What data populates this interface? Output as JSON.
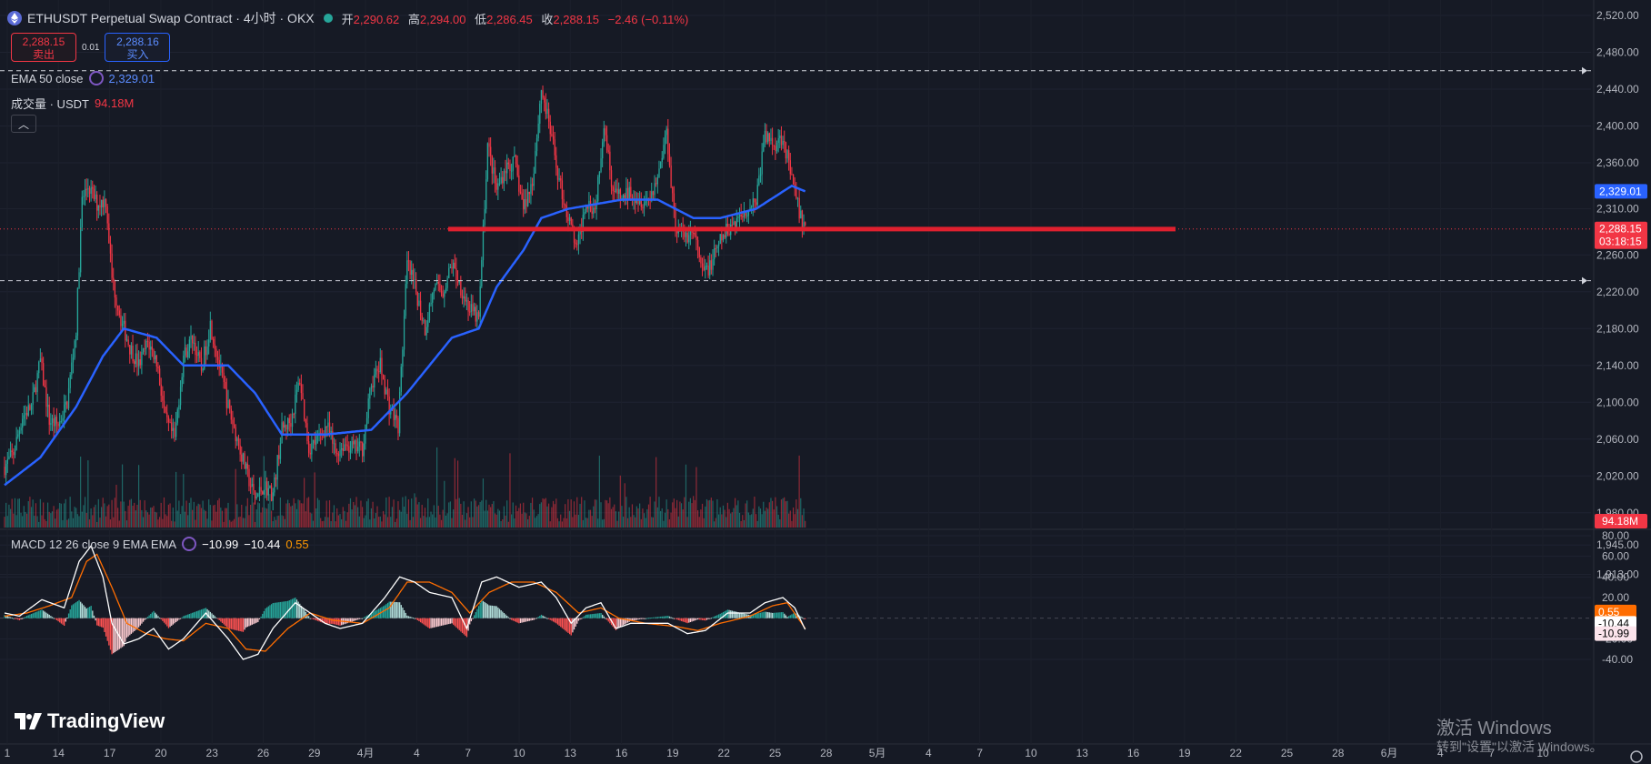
{
  "header": {
    "title": "ETHUSDT Perpetual Swap Contract · 4小时 · OKX",
    "ohlc": [
      {
        "k": "开",
        "v": "2,290.62"
      },
      {
        "k": "高",
        "v": "2,294.00"
      },
      {
        "k": "低",
        "v": "2,286.45"
      },
      {
        "k": "收",
        "v": "2,288.15"
      }
    ],
    "change": "−2.46 (−0.11%)"
  },
  "trade": {
    "sell_price": "2,288.15",
    "sell_label": "卖出",
    "spread": "0.01",
    "buy_price": "2,288.16",
    "buy_label": "买入"
  },
  "indicators": {
    "ema": {
      "name": "EMA 50 close",
      "value": "2,329.01"
    },
    "volume": {
      "name": "成交量 · USDT",
      "value": "94.18M"
    },
    "macd": {
      "name": "MACD 12 26 close 9 EMA EMA",
      "v1": "−10.99",
      "v2": "−10.44",
      "v3": "0.55"
    }
  },
  "branding": {
    "logo_text": "TradingView"
  },
  "os_watermark": {
    "line1": "激活 Windows",
    "line2": "转到\"设置\"以激活 Windows。"
  },
  "colors": {
    "up": "#26a69a",
    "down": "#f23645",
    "ema": "#2962ff",
    "macd": "#ffffff",
    "signal": "#ff6d00",
    "bg": "#161a25",
    "hline": "#e0202f"
  },
  "chart_data": {
    "type": "candlestick",
    "y_ticks": [
      "2,520.00",
      "2,480.00",
      "2,440.00",
      "2,400.00",
      "2,360.00",
      "2,310.00",
      "2,260.00",
      "2,220.00",
      "2,180.00",
      "2,140.00",
      "2,100.00",
      "2,060.00",
      "2,020.00",
      "1,980.00",
      "1,945.00",
      "1,913.00"
    ],
    "x_ticks": [
      "1",
      "14",
      "17",
      "20",
      "23",
      "26",
      "29",
      "4月",
      "4",
      "7",
      "10",
      "13",
      "16",
      "19",
      "22",
      "25",
      "28",
      "5月",
      "4",
      "7",
      "10",
      "13",
      "16",
      "19",
      "22",
      "25",
      "28",
      "6月",
      "4",
      "7",
      "10"
    ],
    "macd_ticks": [
      "80.00",
      "60.00",
      "40.00",
      "20.00",
      "-20.00",
      "-40.00"
    ],
    "price_labels": [
      {
        "text": "2,329.01",
        "value": 2329.01,
        "color": "#2962ff"
      },
      {
        "text": "2,288.15",
        "value": 2288.15,
        "color": "#f23645",
        "sub": "03:18:15"
      }
    ],
    "macd_labels": [
      {
        "text": "0.55",
        "value": 0.55,
        "color": "#ff6d00"
      },
      {
        "text": "-10.44",
        "value": -10.44,
        "color": "#ffffff"
      },
      {
        "text": "-10.99",
        "value": -10.99,
        "color": "#fce4ec"
      }
    ],
    "volume_label": {
      "text": "94.18M",
      "color": "#f23645"
    },
    "dashed_levels": [
      2460,
      2232
    ],
    "horizontal_line": 2288,
    "close_waypoints": [
      [
        0,
        2030
      ],
      [
        6,
        2045
      ],
      [
        12,
        2085
      ],
      [
        18,
        2095
      ],
      [
        24,
        2145
      ],
      [
        30,
        2080
      ],
      [
        36,
        2075
      ],
      [
        42,
        2100
      ],
      [
        48,
        2180
      ],
      [
        52,
        2320
      ],
      [
        56,
        2335
      ],
      [
        62,
        2315
      ],
      [
        68,
        2320
      ],
      [
        72,
        2235
      ],
      [
        78,
        2190
      ],
      [
        84,
        2160
      ],
      [
        90,
        2140
      ],
      [
        96,
        2165
      ],
      [
        102,
        2145
      ],
      [
        108,
        2080
      ],
      [
        114,
        2060
      ],
      [
        120,
        2150
      ],
      [
        126,
        2170
      ],
      [
        132,
        2135
      ],
      [
        138,
        2185
      ],
      [
        144,
        2140
      ],
      [
        150,
        2095
      ],
      [
        156,
        2060
      ],
      [
        162,
        2025
      ],
      [
        168,
        1995
      ],
      [
        174,
        2010
      ],
      [
        180,
        2000
      ],
      [
        186,
        2070
      ],
      [
        192,
        2080
      ],
      [
        198,
        2125
      ],
      [
        204,
        2050
      ],
      [
        210,
        2060
      ],
      [
        216,
        2075
      ],
      [
        222,
        2045
      ],
      [
        228,
        2055
      ],
      [
        234,
        2050
      ],
      [
        240,
        2050
      ],
      [
        246,
        2120
      ],
      [
        252,
        2140
      ],
      [
        258,
        2095
      ],
      [
        264,
        2075
      ],
      [
        270,
        2250
      ],
      [
        276,
        2220
      ],
      [
        282,
        2180
      ],
      [
        288,
        2225
      ],
      [
        294,
        2220
      ],
      [
        300,
        2250
      ],
      [
        306,
        2225
      ],
      [
        312,
        2200
      ],
      [
        318,
        2190
      ],
      [
        324,
        2380
      ],
      [
        330,
        2330
      ],
      [
        336,
        2355
      ],
      [
        342,
        2360
      ],
      [
        348,
        2310
      ],
      [
        354,
        2340
      ],
      [
        360,
        2440
      ],
      [
        366,
        2395
      ],
      [
        372,
        2340
      ],
      [
        378,
        2300
      ],
      [
        384,
        2265
      ],
      [
        390,
        2320
      ],
      [
        396,
        2310
      ],
      [
        402,
        2405
      ],
      [
        408,
        2330
      ],
      [
        414,
        2320
      ],
      [
        420,
        2330
      ],
      [
        426,
        2320
      ],
      [
        432,
        2320
      ],
      [
        438,
        2345
      ],
      [
        444,
        2395
      ],
      [
        450,
        2290
      ],
      [
        456,
        2280
      ],
      [
        462,
        2285
      ],
      [
        468,
        2240
      ],
      [
        474,
        2250
      ],
      [
        480,
        2275
      ],
      [
        486,
        2290
      ],
      [
        492,
        2300
      ],
      [
        498,
        2310
      ],
      [
        504,
        2320
      ],
      [
        510,
        2390
      ],
      [
        516,
        2380
      ],
      [
        522,
        2390
      ],
      [
        528,
        2340
      ],
      [
        534,
        2300
      ],
      [
        537,
        2288
      ]
    ],
    "ema_waypoints": [
      [
        0,
        2010
      ],
      [
        24,
        2040
      ],
      [
        48,
        2095
      ],
      [
        66,
        2150
      ],
      [
        80,
        2180
      ],
      [
        102,
        2170
      ],
      [
        120,
        2140
      ],
      [
        150,
        2140
      ],
      [
        168,
        2110
      ],
      [
        186,
        2065
      ],
      [
        216,
        2065
      ],
      [
        246,
        2070
      ],
      [
        270,
        2110
      ],
      [
        300,
        2170
      ],
      [
        318,
        2180
      ],
      [
        330,
        2225
      ],
      [
        348,
        2265
      ],
      [
        360,
        2300
      ],
      [
        378,
        2310
      ],
      [
        414,
        2320
      ],
      [
        438,
        2320
      ],
      [
        462,
        2300
      ],
      [
        480,
        2300
      ],
      [
        504,
        2310
      ],
      [
        528,
        2335
      ],
      [
        537,
        2329
      ]
    ],
    "macd_waypoints": [
      [
        0,
        5
      ],
      [
        10,
        2
      ],
      [
        25,
        18
      ],
      [
        40,
        10
      ],
      [
        50,
        55
      ],
      [
        58,
        70
      ],
      [
        66,
        40
      ],
      [
        72,
        -5
      ],
      [
        80,
        -25
      ],
      [
        90,
        -20
      ],
      [
        100,
        -10
      ],
      [
        110,
        -30
      ],
      [
        120,
        -20
      ],
      [
        135,
        5
      ],
      [
        150,
        -20
      ],
      [
        160,
        -40
      ],
      [
        170,
        -35
      ],
      [
        180,
        -10
      ],
      [
        195,
        15
      ],
      [
        205,
        5
      ],
      [
        215,
        -5
      ],
      [
        225,
        -10
      ],
      [
        240,
        -5
      ],
      [
        255,
        20
      ],
      [
        265,
        40
      ],
      [
        275,
        35
      ],
      [
        285,
        25
      ],
      [
        300,
        20
      ],
      [
        310,
        -10
      ],
      [
        320,
        35
      ],
      [
        330,
        40
      ],
      [
        345,
        30
      ],
      [
        360,
        35
      ],
      [
        370,
        20
      ],
      [
        380,
        -5
      ],
      [
        390,
        10
      ],
      [
        400,
        15
      ],
      [
        410,
        -10
      ],
      [
        420,
        -5
      ],
      [
        430,
        -5
      ],
      [
        445,
        -5
      ],
      [
        458,
        -15
      ],
      [
        470,
        -12
      ],
      [
        485,
        5
      ],
      [
        500,
        5
      ],
      [
        510,
        15
      ],
      [
        522,
        20
      ],
      [
        530,
        10
      ],
      [
        537,
        -11
      ]
    ],
    "signal_waypoints": [
      [
        0,
        2
      ],
      [
        15,
        5
      ],
      [
        30,
        12
      ],
      [
        45,
        20
      ],
      [
        55,
        55
      ],
      [
        62,
        62
      ],
      [
        72,
        30
      ],
      [
        82,
        -5
      ],
      [
        95,
        -15
      ],
      [
        108,
        -20
      ],
      [
        120,
        -22
      ],
      [
        135,
        -5
      ],
      [
        150,
        -10
      ],
      [
        162,
        -30
      ],
      [
        175,
        -32
      ],
      [
        190,
        -10
      ],
      [
        205,
        5
      ],
      [
        220,
        -2
      ],
      [
        240,
        -5
      ],
      [
        258,
        10
      ],
      [
        270,
        35
      ],
      [
        285,
        35
      ],
      [
        300,
        25
      ],
      [
        312,
        5
      ],
      [
        325,
        25
      ],
      [
        340,
        35
      ],
      [
        355,
        35
      ],
      [
        370,
        25
      ],
      [
        385,
        5
      ],
      [
        400,
        10
      ],
      [
        412,
        0
      ],
      [
        430,
        -5
      ],
      [
        450,
        -8
      ],
      [
        465,
        -12
      ],
      [
        480,
        -5
      ],
      [
        500,
        2
      ],
      [
        515,
        12
      ],
      [
        525,
        15
      ],
      [
        537,
        -10
      ]
    ]
  }
}
